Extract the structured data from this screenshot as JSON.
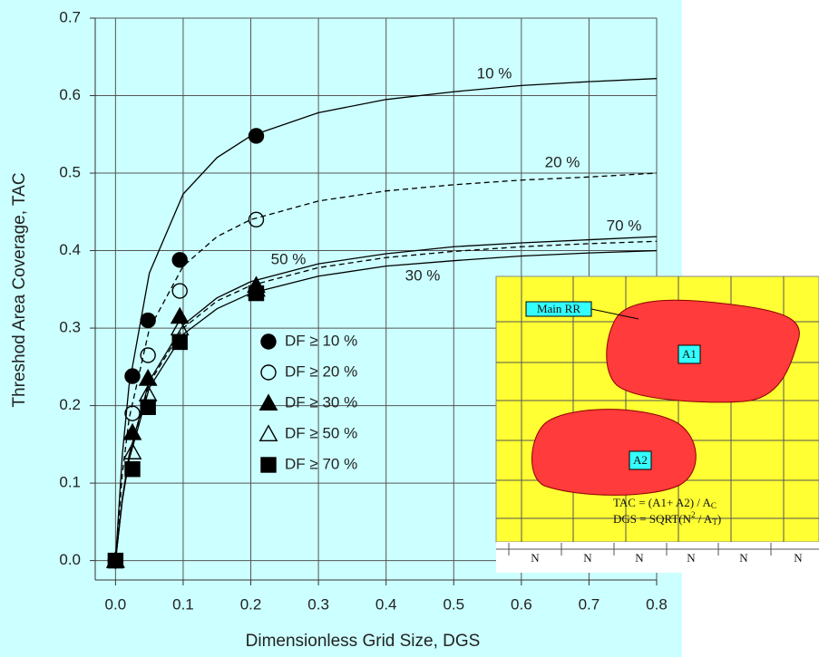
{
  "chart_data": {
    "type": "scatter",
    "x_label": "Dimensionless Grid Size, DGS",
    "y_label": "Threshod Area Coverage, TAC",
    "xlim": [
      -0.03,
      0.8
    ],
    "ylim": [
      -0.025,
      0.7
    ],
    "xticks": [
      {
        "value": 0,
        "label": "0.0"
      },
      0.1,
      0.2,
      0.3,
      0.4,
      0.5,
      0.6,
      0.7,
      0.8
    ],
    "yticks": [
      {
        "value": 0,
        "label": "0.0"
      },
      0.1,
      0.2,
      0.3,
      0.4,
      0.5,
      0.6,
      0.7
    ],
    "grid": true,
    "background": "#ccffff",
    "series": [
      {
        "name": "DF ≥ 10 %",
        "marker": "circle",
        "filled": true,
        "color": "#000000",
        "x": [
          0,
          0.025,
          0.048,
          0.095,
          0.208
        ],
        "values": [
          0,
          0.238,
          0.31,
          0.388,
          0.548
        ]
      },
      {
        "name": "DF ≥ 20 %",
        "marker": "circle",
        "filled": false,
        "color": "#000000",
        "x": [
          0,
          0.025,
          0.048,
          0.095,
          0.208
        ],
        "values": [
          0,
          0.19,
          0.265,
          0.348,
          0.44
        ]
      },
      {
        "name": "DF ≥ 30 %",
        "marker": "triangle",
        "filled": true,
        "color": "#000000",
        "x": [
          0,
          0.025,
          0.048,
          0.095,
          0.208
        ],
        "values": [
          0,
          0.165,
          0.235,
          0.315,
          0.355
        ]
      },
      {
        "name": "DF ≥ 50 %",
        "marker": "triangle",
        "filled": false,
        "color": "#000000",
        "x": [
          0,
          0.025,
          0.048,
          0.095,
          0.208
        ],
        "values": [
          0,
          0.14,
          0.215,
          0.3,
          0.35
        ]
      },
      {
        "name": "DF ≥ 70 %",
        "marker": "square",
        "filled": true,
        "color": "#000000",
        "x": [
          0,
          0.025,
          0.048,
          0.095,
          0.208
        ],
        "values": [
          0,
          0.118,
          0.198,
          0.282,
          0.345
        ]
      }
    ],
    "curves": [
      {
        "name": "10 %",
        "dashed": false,
        "x": [
          0,
          0.01,
          0.02,
          0.05,
          0.1,
          0.15,
          0.2,
          0.3,
          0.4,
          0.5,
          0.6,
          0.7,
          0.8
        ],
        "values": [
          0,
          0.136,
          0.226,
          0.371,
          0.473,
          0.52,
          0.548,
          0.578,
          0.595,
          0.605,
          0.613,
          0.618,
          0.622
        ]
      },
      {
        "name": "20 %",
        "dashed": true,
        "x": [
          0,
          0.01,
          0.02,
          0.05,
          0.1,
          0.15,
          0.2,
          0.3,
          0.4,
          0.5,
          0.6,
          0.7,
          0.8
        ],
        "values": [
          0,
          0.111,
          0.183,
          0.299,
          0.38,
          0.418,
          0.44,
          0.464,
          0.477,
          0.485,
          0.491,
          0.495,
          0.5
        ]
      },
      {
        "name": "30 %",
        "dashed": false,
        "x": [
          0,
          0.01,
          0.02,
          0.05,
          0.1,
          0.15,
          0.2,
          0.3,
          0.4,
          0.5,
          0.6,
          0.7,
          0.8
        ],
        "values": [
          0,
          0.077,
          0.13,
          0.223,
          0.292,
          0.325,
          0.345,
          0.367,
          0.38,
          0.387,
          0.393,
          0.397,
          0.4
        ]
      },
      {
        "name": "50 %",
        "dashed": true,
        "x": [
          0,
          0.01,
          0.02,
          0.05,
          0.1,
          0.15,
          0.2,
          0.3,
          0.4,
          0.5,
          0.6,
          0.7,
          0.8
        ],
        "values": [
          0,
          0.079,
          0.134,
          0.229,
          0.3,
          0.335,
          0.355,
          0.378,
          0.391,
          0.399,
          0.405,
          0.409,
          0.412
        ]
      },
      {
        "name": "70 %",
        "dashed": false,
        "x": [
          0,
          0.01,
          0.02,
          0.05,
          0.1,
          0.15,
          0.2,
          0.3,
          0.4,
          0.5,
          0.6,
          0.7,
          0.8
        ],
        "values": [
          0,
          0.08,
          0.136,
          0.232,
          0.304,
          0.339,
          0.36,
          0.383,
          0.396,
          0.405,
          0.41,
          0.414,
          0.418
        ]
      }
    ]
  },
  "inset": {
    "main_label": "Main RR",
    "area_1": "A1",
    "area_2": "A2",
    "formula_1": [
      "TAC = (A1+ A2) / A",
      "C"
    ],
    "formula_2": [
      "DGS = SQRT(N",
      "2",
      " / A",
      "T",
      ")"
    ],
    "cell_labels": [
      "N",
      "N",
      "N",
      "N",
      "N",
      "N"
    ]
  }
}
